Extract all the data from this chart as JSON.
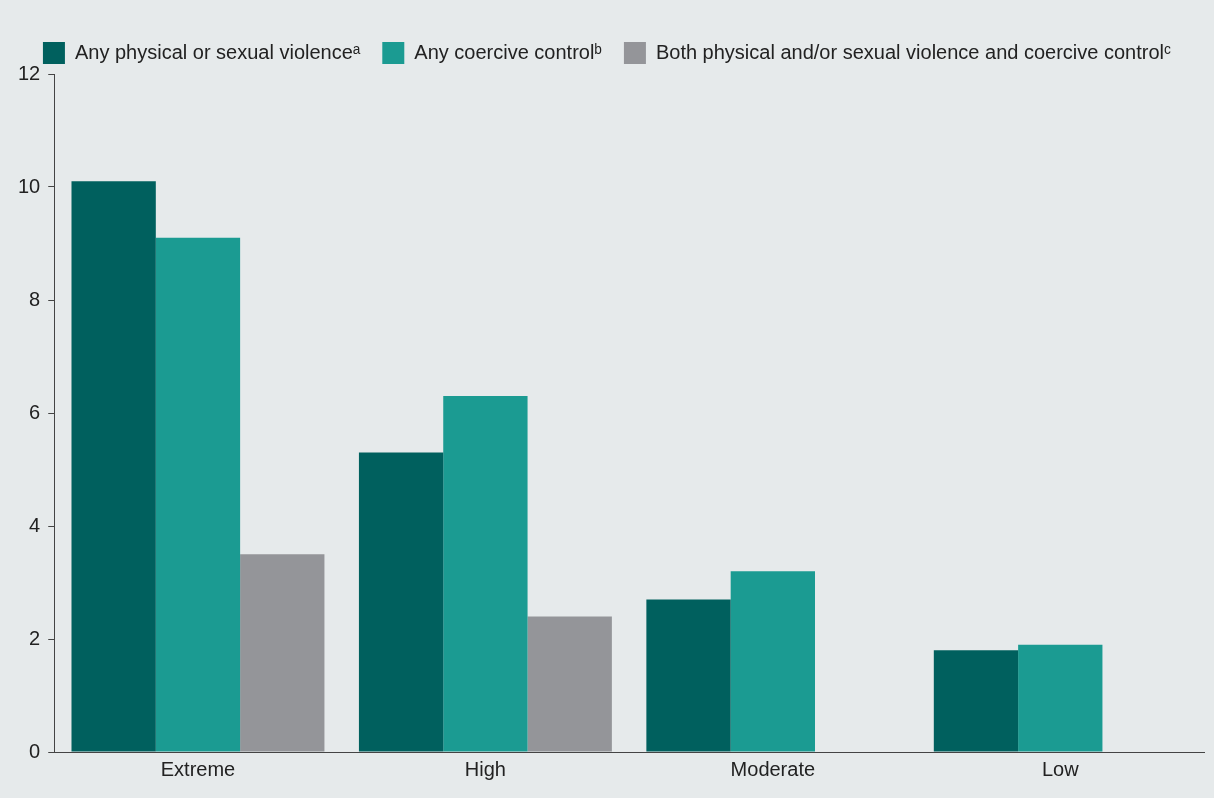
{
  "chart_data": {
    "type": "bar",
    "categories": [
      "Extreme",
      "High",
      "Moderate",
      "Low"
    ],
    "series": [
      {
        "name": "Any physical or sexual violenceᵃ",
        "color": "#00605e",
        "values": [
          10.1,
          5.3,
          2.7,
          1.8
        ]
      },
      {
        "name": "Any coercive controlᵇ",
        "color": "#1b9b92",
        "values": [
          9.1,
          6.3,
          3.2,
          1.9
        ]
      },
      {
        "name": "Both physical and/or sexual violence and coercive controlᶜ",
        "color": "#949599",
        "values": [
          3.5,
          2.4,
          null,
          null
        ]
      }
    ],
    "ylim": [
      0,
      12
    ],
    "yticks": [
      0,
      2,
      4,
      6,
      8,
      10,
      12
    ],
    "grid": false,
    "legend": "top"
  }
}
